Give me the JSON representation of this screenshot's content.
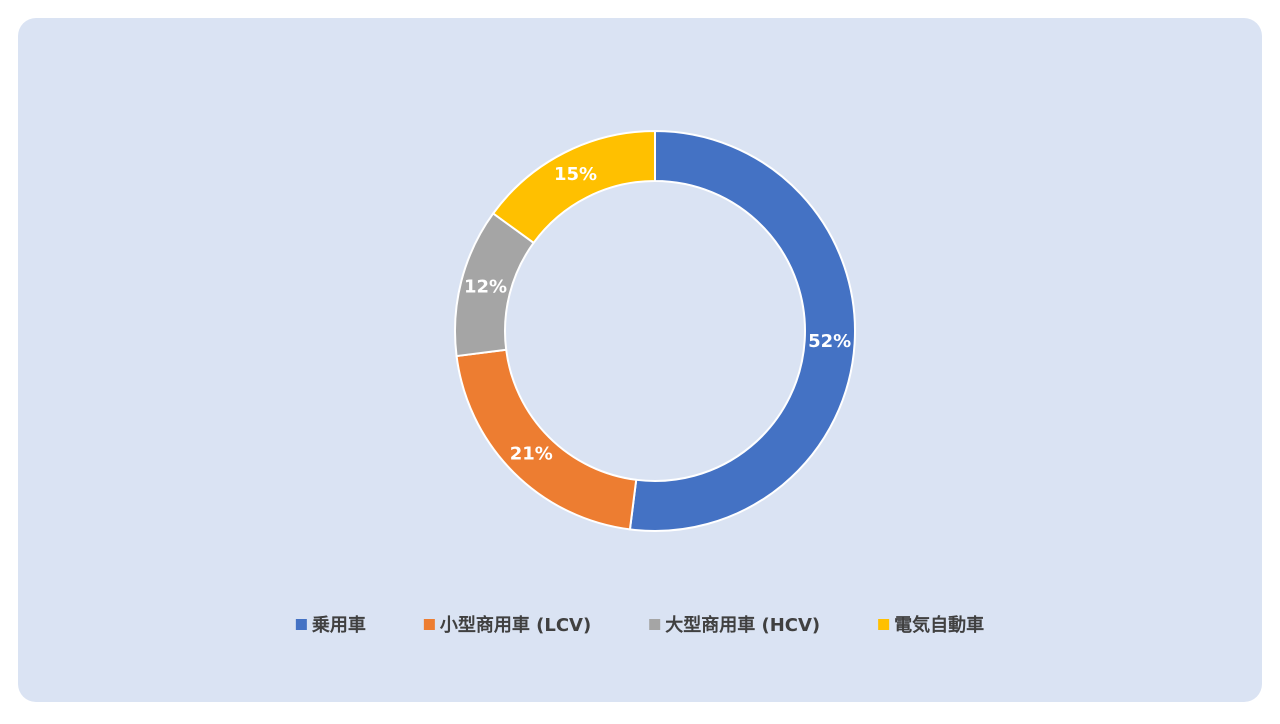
{
  "chart_data": {
    "type": "donut",
    "categories": [
      "乗用車",
      "小型商用車 (LCV)",
      "大型商用車 (HCV)",
      "電気自動車"
    ],
    "values": [
      52,
      21,
      12,
      15
    ],
    "value_labels": [
      "52%",
      "21%",
      "12%",
      "15%"
    ],
    "colors": [
      "#4472c4",
      "#ed7d31",
      "#a5a5a5",
      "#ffc000"
    ],
    "legend": "bottom"
  }
}
